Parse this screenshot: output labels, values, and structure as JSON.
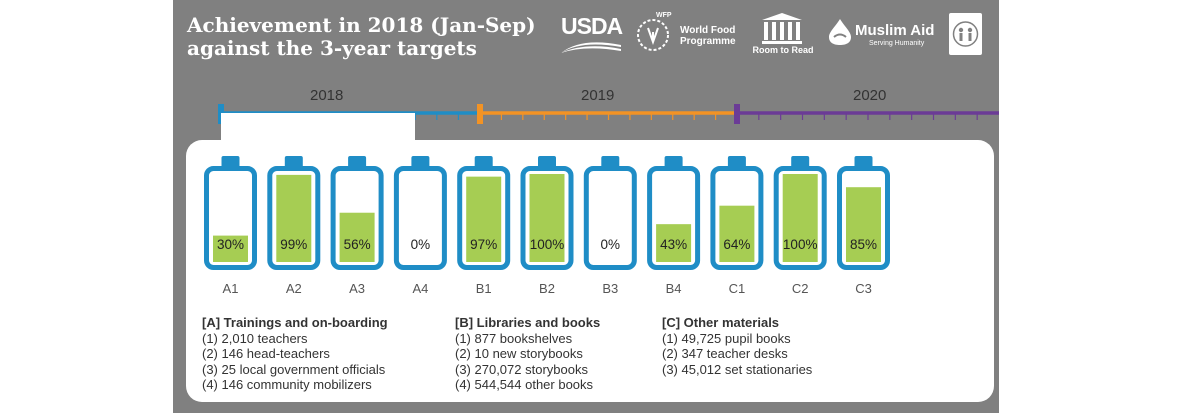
{
  "title": {
    "line1": "Achievement in 2018 (Jan-Sep)",
    "line2": "against the 3-year targets"
  },
  "logos": {
    "usda": "USDA",
    "wfp_small": "WFP",
    "wfp_name": "World Food Programme",
    "room_to_read": "Room to Read",
    "muslim_aid": "Muslim Aid",
    "muslim_aid_tag": "Serving Humanity",
    "fifth_logo_icon": "family-emblem-icon"
  },
  "timeline": {
    "years": [
      "2018",
      "2019",
      "2020"
    ],
    "colors": [
      "#1f8dc6",
      "#f39324",
      "#6b3b96"
    ]
  },
  "colors": {
    "battery_outline": "#1f8dc6",
    "battery_fill": "#a6cd53",
    "panel": "#808080"
  },
  "chart_data": {
    "type": "bar",
    "title": "Achievement in 2018 (Jan-Sep) against the 3-year targets",
    "categories": [
      "A1",
      "A2",
      "A3",
      "A4",
      "B1",
      "B2",
      "B3",
      "B4",
      "C1",
      "C2",
      "C3"
    ],
    "values": [
      30,
      99,
      56,
      0,
      97,
      100,
      0,
      43,
      64,
      100,
      85
    ],
    "labels": [
      "30%",
      "99%",
      "56%",
      "0%",
      "97%",
      "100%",
      "0%",
      "43%",
      "64%",
      "100%",
      "85%"
    ],
    "ylim": [
      0,
      100
    ],
    "xlabel": "",
    "ylabel": ""
  },
  "legend": {
    "A": {
      "heading": "[A] Trainings and on-boarding",
      "items": [
        "(1) 2,010 teachers",
        "(2) 146 head-teachers",
        "(3) 25 local government officials",
        "(4) 146 community mobilizers"
      ]
    },
    "B": {
      "heading": "[B] Libraries and books",
      "items": [
        "(1) 877 bookshelves",
        "(2) 10 new storybooks",
        "(3) 270,072 storybooks",
        "(4) 544,544 other books"
      ]
    },
    "C": {
      "heading": "[C] Other materials",
      "items": [
        "(1) 49,725 pupil books",
        "(2) 347 teacher desks",
        "(3) 45,012 set stationaries"
      ]
    }
  }
}
